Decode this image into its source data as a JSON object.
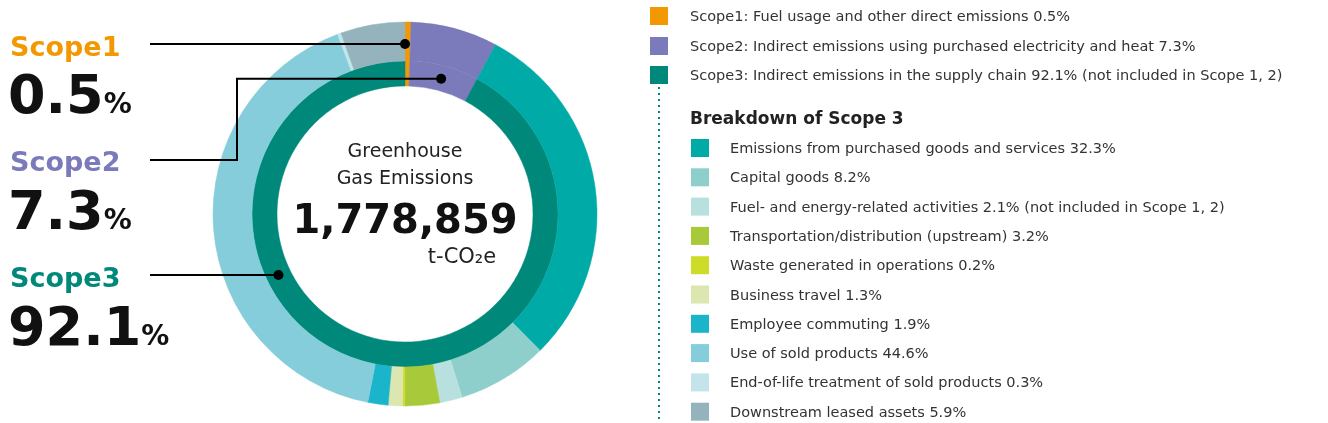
{
  "chart_data": {
    "type": "donut",
    "title": "Greenhouse Gas Emissions",
    "legend_title": "Breakdown of Scope 3",
    "legend": "right",
    "categories": [
      "Scope1: Fuel usage and other direct emissions 0.5%",
      "Scope2: Indirect emissions using purchased electricity and heat 7.3%",
      "Scope3: Indirect emissions in the supply chain 92.1% (not included in Scope 1, 2)",
      "Emissions from purchased goods and services 32.3%",
      "Capital goods 8.2%",
      "Fuel- and energy-related activities 2.1% (not included in Scope 1, 2)",
      "Transportation/distribution (upstream) 3.2%",
      "Waste generated in operations 0.2%",
      "Business travel 1.3%",
      "Employee commuting 1.9%",
      "Use of sold products 44.6%",
      "End-of-life treatment of sold products 0.3%",
      "Downstream leased assets 5.9%"
    ],
    "colors": [
      "#f39800",
      "#7b7bbb",
      "#00897b",
      "#00aaa6",
      "#8ecfcb",
      "#b8e0de",
      "#a8c93a",
      "#cfdc27",
      "#dbe6b0",
      "#1ab5cb",
      "#85cddb",
      "#c3e4ea",
      "#95b3bd"
    ],
    "series": [
      {
        "values": [
          0.5,
          7.3,
          92.1,
          null,
          null,
          null,
          null,
          null,
          null,
          null,
          null,
          null,
          null
        ],
        "value_labels": [
          "0.5%",
          "7.3%",
          "92.1%",
          null,
          null,
          null,
          null,
          null,
          null,
          null,
          null,
          null,
          null
        ]
      },
      {
        "values": [
          0.5,
          7.3,
          null,
          29.7,
          7.6,
          1.9,
          2.9,
          0.2,
          1.2,
          1.7,
          41.1,
          0.3,
          5.4
        ]
      }
    ],
    "annotations": [
      "Scope1",
      "Scope2",
      "Scope3",
      "1,778,859",
      "t-CO₂e"
    ]
  }
}
